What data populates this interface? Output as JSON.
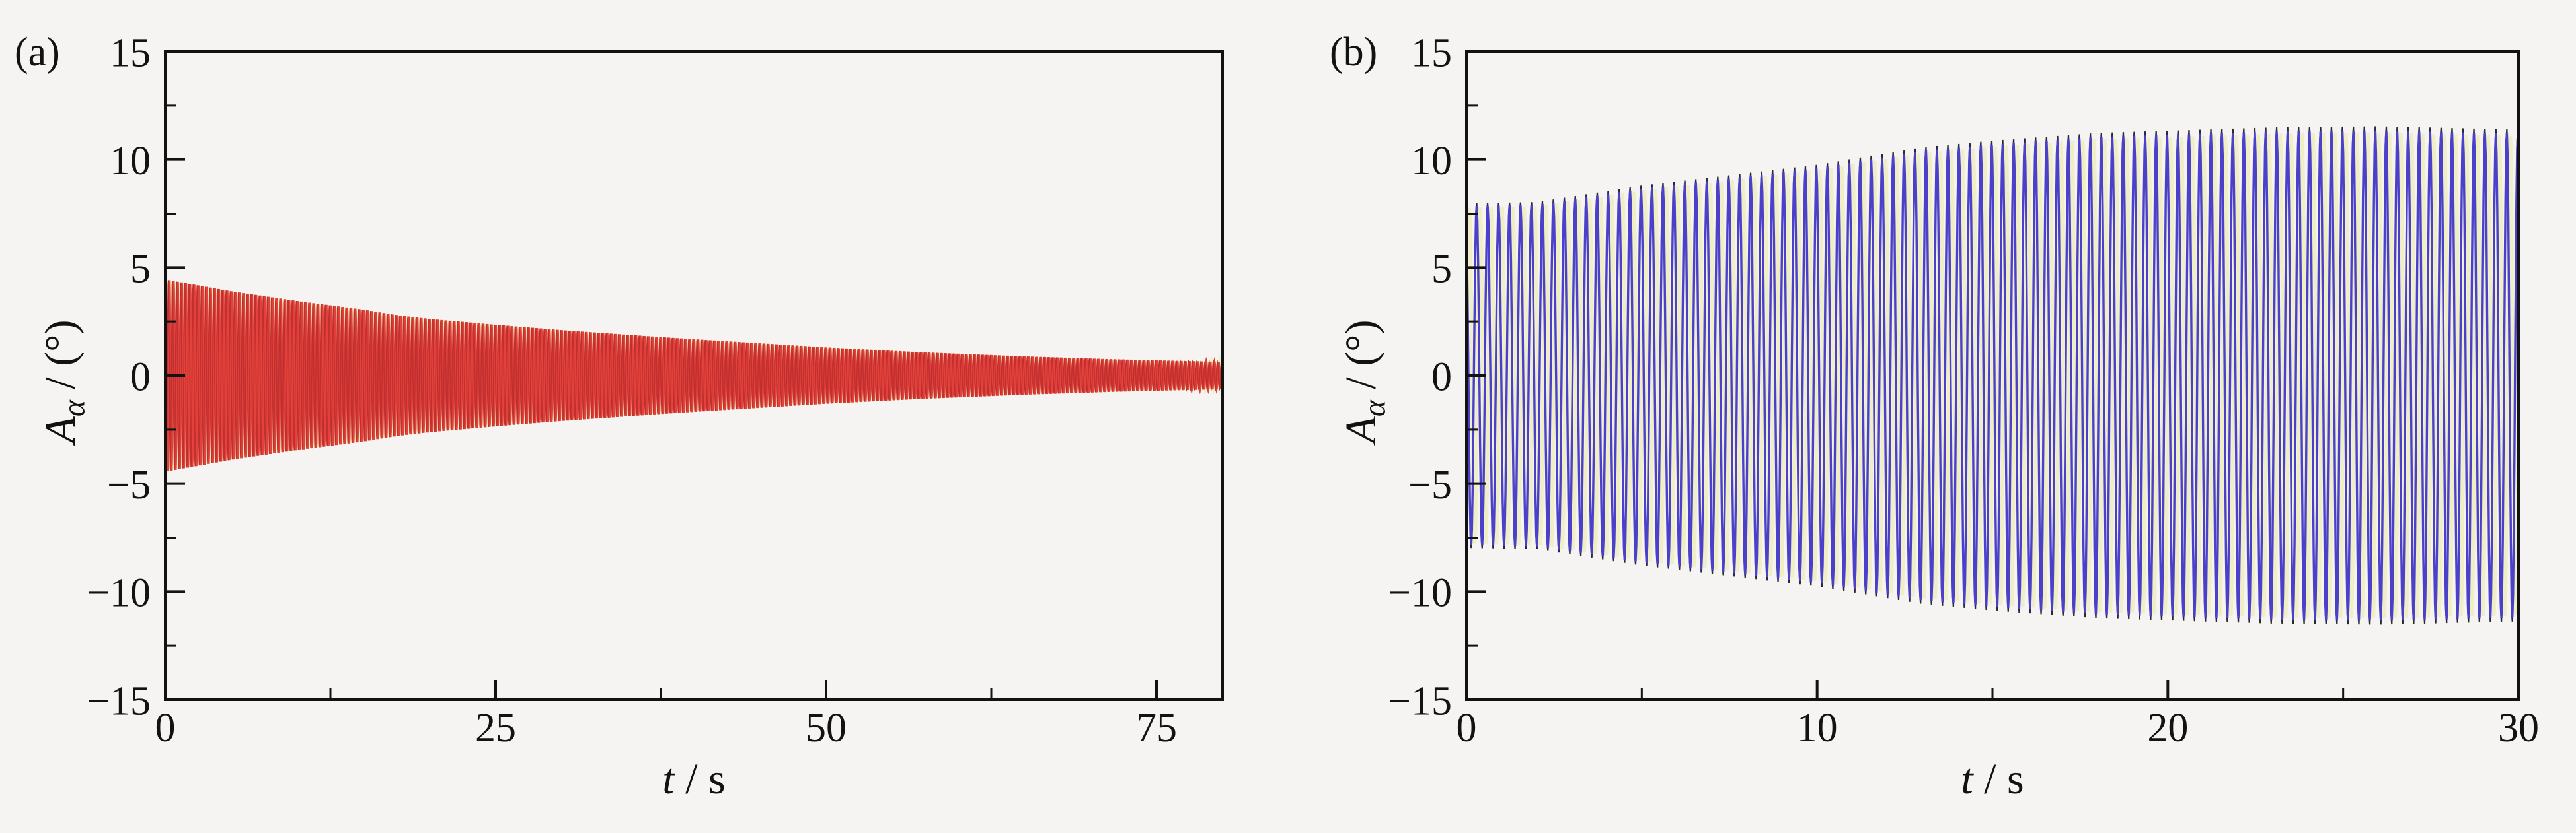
{
  "figure": {
    "background": "#f5f4f2",
    "axis_color": "#121212",
    "text_color": "#121212"
  },
  "panels": [
    {
      "tag": "(a)",
      "xlabel_var": "t",
      "xlabel_rest": " / s",
      "ylabel_var": "A",
      "ylabel_sub": "α",
      "ylabel_rest": " / (°)"
    },
    {
      "tag": "(b)",
      "xlabel_var": "t",
      "xlabel_rest": " / s",
      "ylabel_var": "A",
      "ylabel_sub": "α",
      "ylabel_rest": " / (°)"
    }
  ],
  "chart_data": [
    {
      "type": "line",
      "panel": "(a)",
      "title": "",
      "xlabel": "t / s",
      "ylabel": "Aα / (°)",
      "xlim": [
        0,
        80
      ],
      "ylim": [
        -15,
        15
      ],
      "x_ticks": [
        0,
        25,
        50,
        75
      ],
      "x_minor_ticks": [
        12.5,
        37.5,
        62.5
      ],
      "y_ticks": [
        -15,
        -10,
        -5,
        0,
        5,
        10,
        15
      ],
      "y_minor_ticks": [
        -12.5,
        -7.5,
        -2.5,
        2.5,
        7.5,
        12.5
      ],
      "grid": false,
      "legend": null,
      "signal": {
        "form": "decaying_oscillation",
        "frequency_hz": 3.2,
        "samples_per_cycle": 16,
        "envelope_points": [
          [
            0,
            4.45
          ],
          [
            5,
            3.9
          ],
          [
            10,
            3.45
          ],
          [
            15,
            3.05
          ],
          [
            17.5,
            2.8
          ],
          [
            20,
            2.62
          ],
          [
            25,
            2.35
          ],
          [
            30,
            2.1
          ],
          [
            37,
            1.8
          ],
          [
            40,
            1.68
          ],
          [
            50,
            1.3
          ],
          [
            57,
            1.08
          ],
          [
            65,
            0.88
          ],
          [
            72,
            0.74
          ],
          [
            80,
            0.62
          ]
        ]
      },
      "series": [
        {
          "name": "background-curve",
          "color": "#f1edbe",
          "width": 5.0,
          "phase": 0.0,
          "amp_scale": 0.99
        },
        {
          "name": "main-curve",
          "color": "#e2423b",
          "width": 3.8,
          "phase": 1.6,
          "amp_scale": 1.0
        },
        {
          "name": "accent-curve",
          "color": "#c22f2f",
          "width": 1.6,
          "phase": 3.2,
          "amp_scale": 1.0
        }
      ]
    },
    {
      "type": "line",
      "panel": "(b)",
      "title": "",
      "xlabel": "t / s",
      "ylabel": "Aα / (°)",
      "xlim": [
        0,
        30
      ],
      "ylim": [
        -15,
        15
      ],
      "x_ticks": [
        0,
        10,
        20,
        30
      ],
      "x_minor_ticks": [
        5,
        15,
        25
      ],
      "y_ticks": [
        -15,
        -10,
        -5,
        0,
        5,
        10,
        15
      ],
      "y_minor_ticks": [
        -12.5,
        -7.5,
        -2.5,
        2.5,
        7.5,
        12.5
      ],
      "grid": false,
      "legend": null,
      "signal": {
        "form": "growing_oscillation",
        "frequency_hz": 3.2,
        "samples_per_cycle": 16,
        "envelope_points": [
          [
            0,
            7.85
          ],
          [
            2,
            7.9
          ],
          [
            5,
            8.65
          ],
          [
            10,
            9.6
          ],
          [
            13,
            10.4
          ],
          [
            15,
            10.7
          ],
          [
            18,
            11.05
          ],
          [
            20,
            11.15
          ],
          [
            23,
            11.3
          ],
          [
            26,
            11.35
          ],
          [
            30,
            11.2
          ]
        ]
      },
      "series": [
        {
          "name": "background-curve",
          "color": "#efeec6",
          "width": 5.5,
          "phase": 0.0,
          "amp_scale": 0.99
        },
        {
          "name": "dark-curve",
          "color": "#2a2a2a",
          "width": 2.2,
          "phase": 2.05,
          "amp_scale": 1.02
        },
        {
          "name": "main-curve",
          "color": "#4a40c9",
          "width": 3.4,
          "phase": 2.0,
          "amp_scale": 1.0
        }
      ]
    }
  ]
}
